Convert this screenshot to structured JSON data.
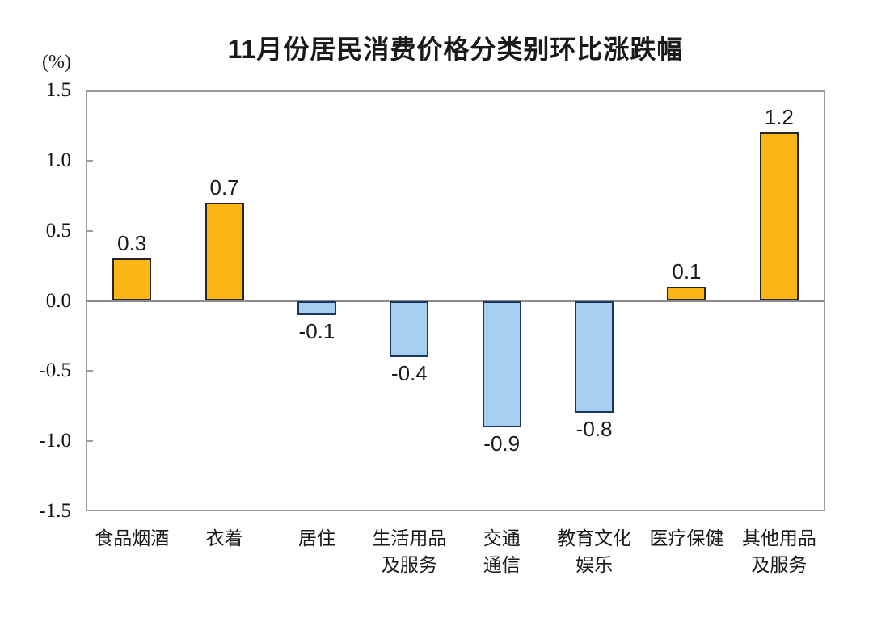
{
  "figure": {
    "title": "11月份居民消费价格分类别环比涨跌幅",
    "y_axis_unit": "(%)"
  },
  "chart_data": {
    "type": "bar",
    "title": "11月份居民消费价格分类别环比涨跌幅",
    "xlabel": "",
    "ylabel": "(%)",
    "ylim": [
      -1.5,
      1.5
    ],
    "y_ticks": [
      1.5,
      1.0,
      0.5,
      0.0,
      -0.5,
      -1.0,
      -1.5
    ],
    "y_tick_labels": [
      "1.5",
      "1.0",
      "0.5",
      "0.0",
      "-0.5",
      "-1.0",
      "-1.5"
    ],
    "inner_tick_values": [
      1.0,
      0.5,
      -0.5,
      -1.0
    ],
    "categories": [
      "食品烟酒",
      "衣着",
      "居住",
      "生活用品及服务",
      "交通通信",
      "教育文化娱乐",
      "医疗保健",
      "其他用品及服务"
    ],
    "category_label_lines": [
      [
        "食品烟酒"
      ],
      [
        "衣着"
      ],
      [
        "居住"
      ],
      [
        "生活用品",
        "及服务"
      ],
      [
        "交通",
        "通信"
      ],
      [
        "教育文化",
        "娱乐"
      ],
      [
        "医疗保健"
      ],
      [
        "其他用品",
        "及服务"
      ]
    ],
    "values": [
      0.3,
      0.7,
      -0.1,
      -0.4,
      -0.9,
      -0.8,
      0.1,
      1.2
    ],
    "value_labels": [
      "0.3",
      "0.7",
      "-0.1",
      "-0.4",
      "-0.9",
      "-0.8",
      "0.1",
      "1.2"
    ],
    "grid": false,
    "legend": "none",
    "colors": {
      "positive_fill": "#FBB615",
      "positive_border": "#262626",
      "negative_fill": "#A7CDEF",
      "negative_border": "#17375E",
      "frame": "#9C9C9C",
      "zero_line": "#8C8C8C",
      "text": "#1A1A1A"
    }
  }
}
